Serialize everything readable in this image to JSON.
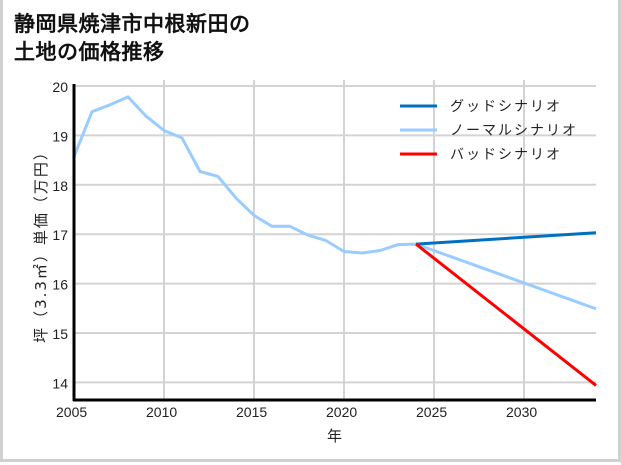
{
  "title_line1": "静岡県焼津市中根新田の",
  "title_line2": "土地の価格推移",
  "chart_data": {
    "type": "line",
    "title": "静岡県焼津市中根新田の土地の価格推移",
    "xlabel": "年",
    "ylabel": "坪（3.3㎡）単価（万円）",
    "xlim": [
      2005,
      2034
    ],
    "ylim": [
      13.7,
      20.05
    ],
    "xticks": [
      2005,
      2010,
      2015,
      2020,
      2025,
      2030
    ],
    "yticks": [
      14,
      15,
      16,
      17,
      18,
      19,
      20
    ],
    "grid": true,
    "legend_position": "upper right",
    "series": [
      {
        "name": "ノーマルシナリオ",
        "color": "#99ccff",
        "x": [
          2005,
          2006,
          2007,
          2008,
          2009,
          2010,
          2011,
          2012,
          2013,
          2014,
          2015,
          2016,
          2017,
          2018,
          2019,
          2020,
          2021,
          2022,
          2023,
          2024,
          2034
        ],
        "values": [
          18.57,
          19.48,
          19.62,
          19.78,
          19.39,
          19.1,
          18.95,
          18.27,
          18.17,
          17.73,
          17.38,
          17.16,
          17.16,
          16.98,
          16.87,
          16.65,
          16.62,
          16.67,
          16.79,
          16.8,
          15.49
        ]
      },
      {
        "name": "グッドシナリオ",
        "color": "#0070c0",
        "x": [
          2024,
          2034
        ],
        "values": [
          16.8,
          17.03
        ]
      },
      {
        "name": "バッドシナリオ",
        "color": "#ff0000",
        "x": [
          2024,
          2034
        ],
        "values": [
          16.8,
          13.94
        ]
      }
    ],
    "legend": [
      "グッドシナリオ",
      "ノーマルシナリオ",
      "バッドシナリオ"
    ]
  }
}
